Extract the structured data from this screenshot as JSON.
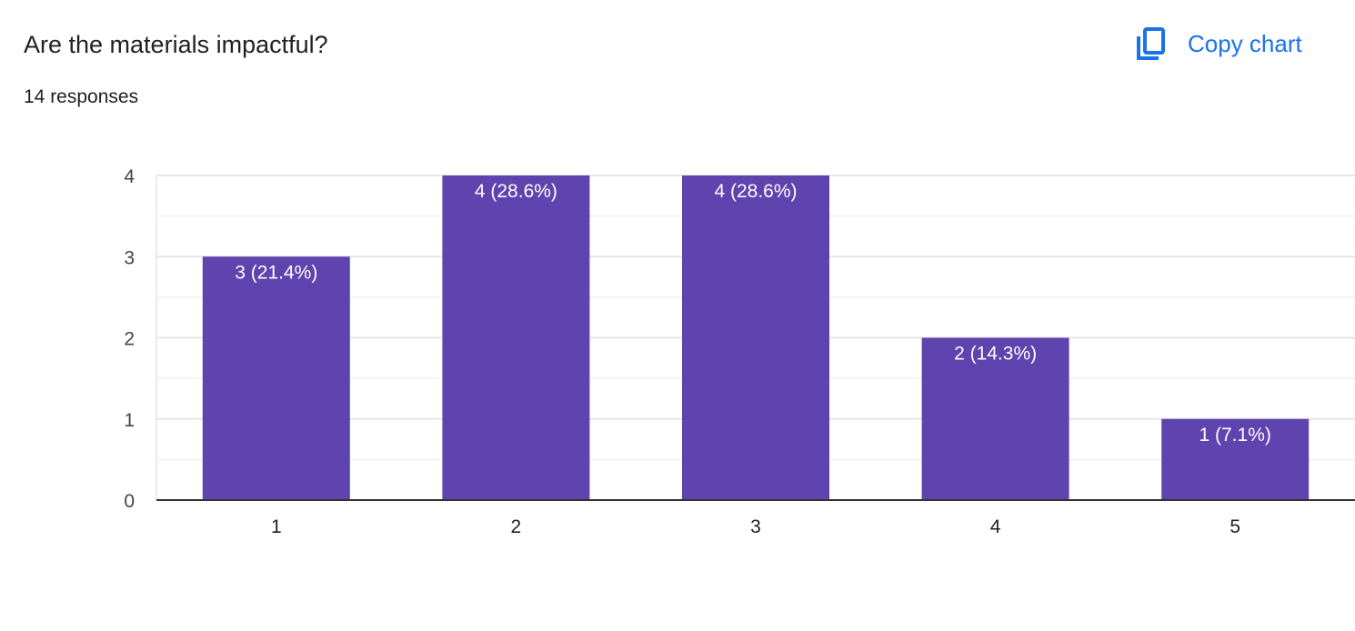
{
  "header": {
    "title": "Are the materials impactful?",
    "responses": "14 responses",
    "copy_label": "Copy chart",
    "copy_icon": "copy-icon",
    "accent": "#1a73e8"
  },
  "chart_data": {
    "type": "bar",
    "categories": [
      "1",
      "2",
      "3",
      "4",
      "5"
    ],
    "values": [
      3,
      4,
      4,
      2,
      1
    ],
    "data_labels": [
      "3 (21.4%)",
      "4 (28.6%)",
      "4 (28.6%)",
      "2 (14.3%)",
      "1 (7.1%)"
    ],
    "ylim": [
      0,
      4
    ],
    "yticks": [
      "0",
      "1",
      "2",
      "3",
      "4"
    ],
    "grid": true,
    "bar_color": "#5f43ae"
  }
}
